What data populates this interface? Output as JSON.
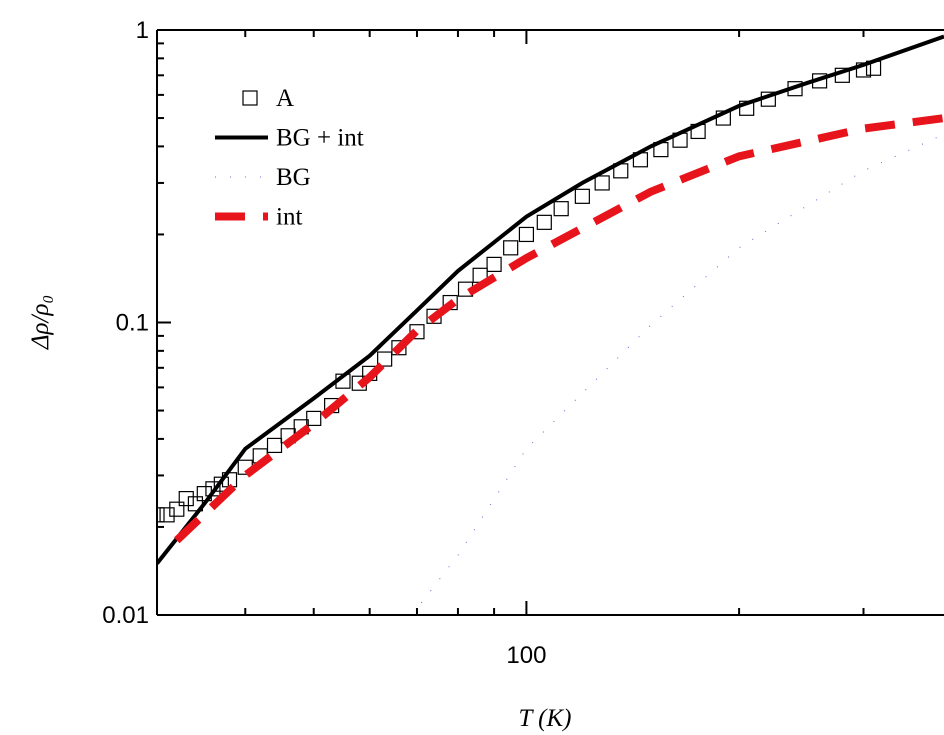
{
  "chart_data": {
    "type": "line",
    "xlabel": "T (K)",
    "ylabel": "Δρ/ρ₀",
    "xscale": "log",
    "yscale": "log",
    "xlim": [
      30,
      390
    ],
    "ylim": [
      0.01,
      1
    ],
    "xticks": [
      100
    ],
    "yticks": [
      0.01,
      0.1,
      1
    ],
    "xminorticks": [
      40,
      50,
      60,
      70,
      80,
      90,
      200,
      300
    ],
    "yminorticks": [
      0.02,
      0.03,
      0.04,
      0.05,
      0.06,
      0.07,
      0.08,
      0.09,
      0.2,
      0.3,
      0.4,
      0.5,
      0.6,
      0.7,
      0.8,
      0.9
    ],
    "legend": "upper left",
    "series": [
      {
        "name": "A",
        "color": "#000000",
        "style": "square",
        "x": [
          30,
          31,
          32,
          33,
          34,
          35,
          36,
          37,
          38,
          40,
          42,
          44,
          46,
          48,
          50,
          53,
          55,
          58,
          60,
          63,
          66,
          70,
          74,
          78,
          82,
          86,
          90,
          95,
          100,
          106,
          112,
          120,
          128,
          136,
          145,
          155,
          165,
          175,
          190,
          205,
          220,
          240,
          260,
          280,
          300,
          310
        ],
        "values": [
          0.022,
          0.022,
          0.023,
          0.025,
          0.024,
          0.026,
          0.027,
          0.028,
          0.029,
          0.032,
          0.035,
          0.038,
          0.041,
          0.044,
          0.047,
          0.052,
          0.063,
          0.062,
          0.067,
          0.075,
          0.082,
          0.093,
          0.105,
          0.117,
          0.13,
          0.145,
          0.158,
          0.18,
          0.2,
          0.22,
          0.245,
          0.27,
          0.3,
          0.33,
          0.36,
          0.39,
          0.42,
          0.45,
          0.5,
          0.54,
          0.58,
          0.63,
          0.67,
          0.7,
          0.73,
          0.74
        ]
      },
      {
        "name": "BG + int",
        "color": "#000000",
        "style": "solid",
        "x": [
          30,
          35,
          40,
          50,
          60,
          70,
          80,
          100,
          120,
          150,
          200,
          250,
          300,
          390
        ],
        "values": [
          0.015,
          0.024,
          0.037,
          0.055,
          0.077,
          0.11,
          0.15,
          0.23,
          0.3,
          0.4,
          0.55,
          0.66,
          0.76,
          0.95
        ]
      },
      {
        "name": "BG",
        "color": "#5a6fd0",
        "style": "dotted",
        "x": [
          71,
          80,
          100,
          150,
          200,
          300,
          390
        ],
        "values": [
          0.011,
          0.016,
          0.037,
          0.098,
          0.18,
          0.33,
          0.44
        ]
      },
      {
        "name": "int",
        "color": "#e8141b",
        "style": "dashed",
        "x": [
          32,
          40,
          50,
          60,
          70,
          80,
          100,
          150,
          200,
          300,
          390
        ],
        "values": [
          0.018,
          0.03,
          0.045,
          0.065,
          0.094,
          0.12,
          0.166,
          0.28,
          0.37,
          0.46,
          0.5
        ]
      }
    ]
  }
}
